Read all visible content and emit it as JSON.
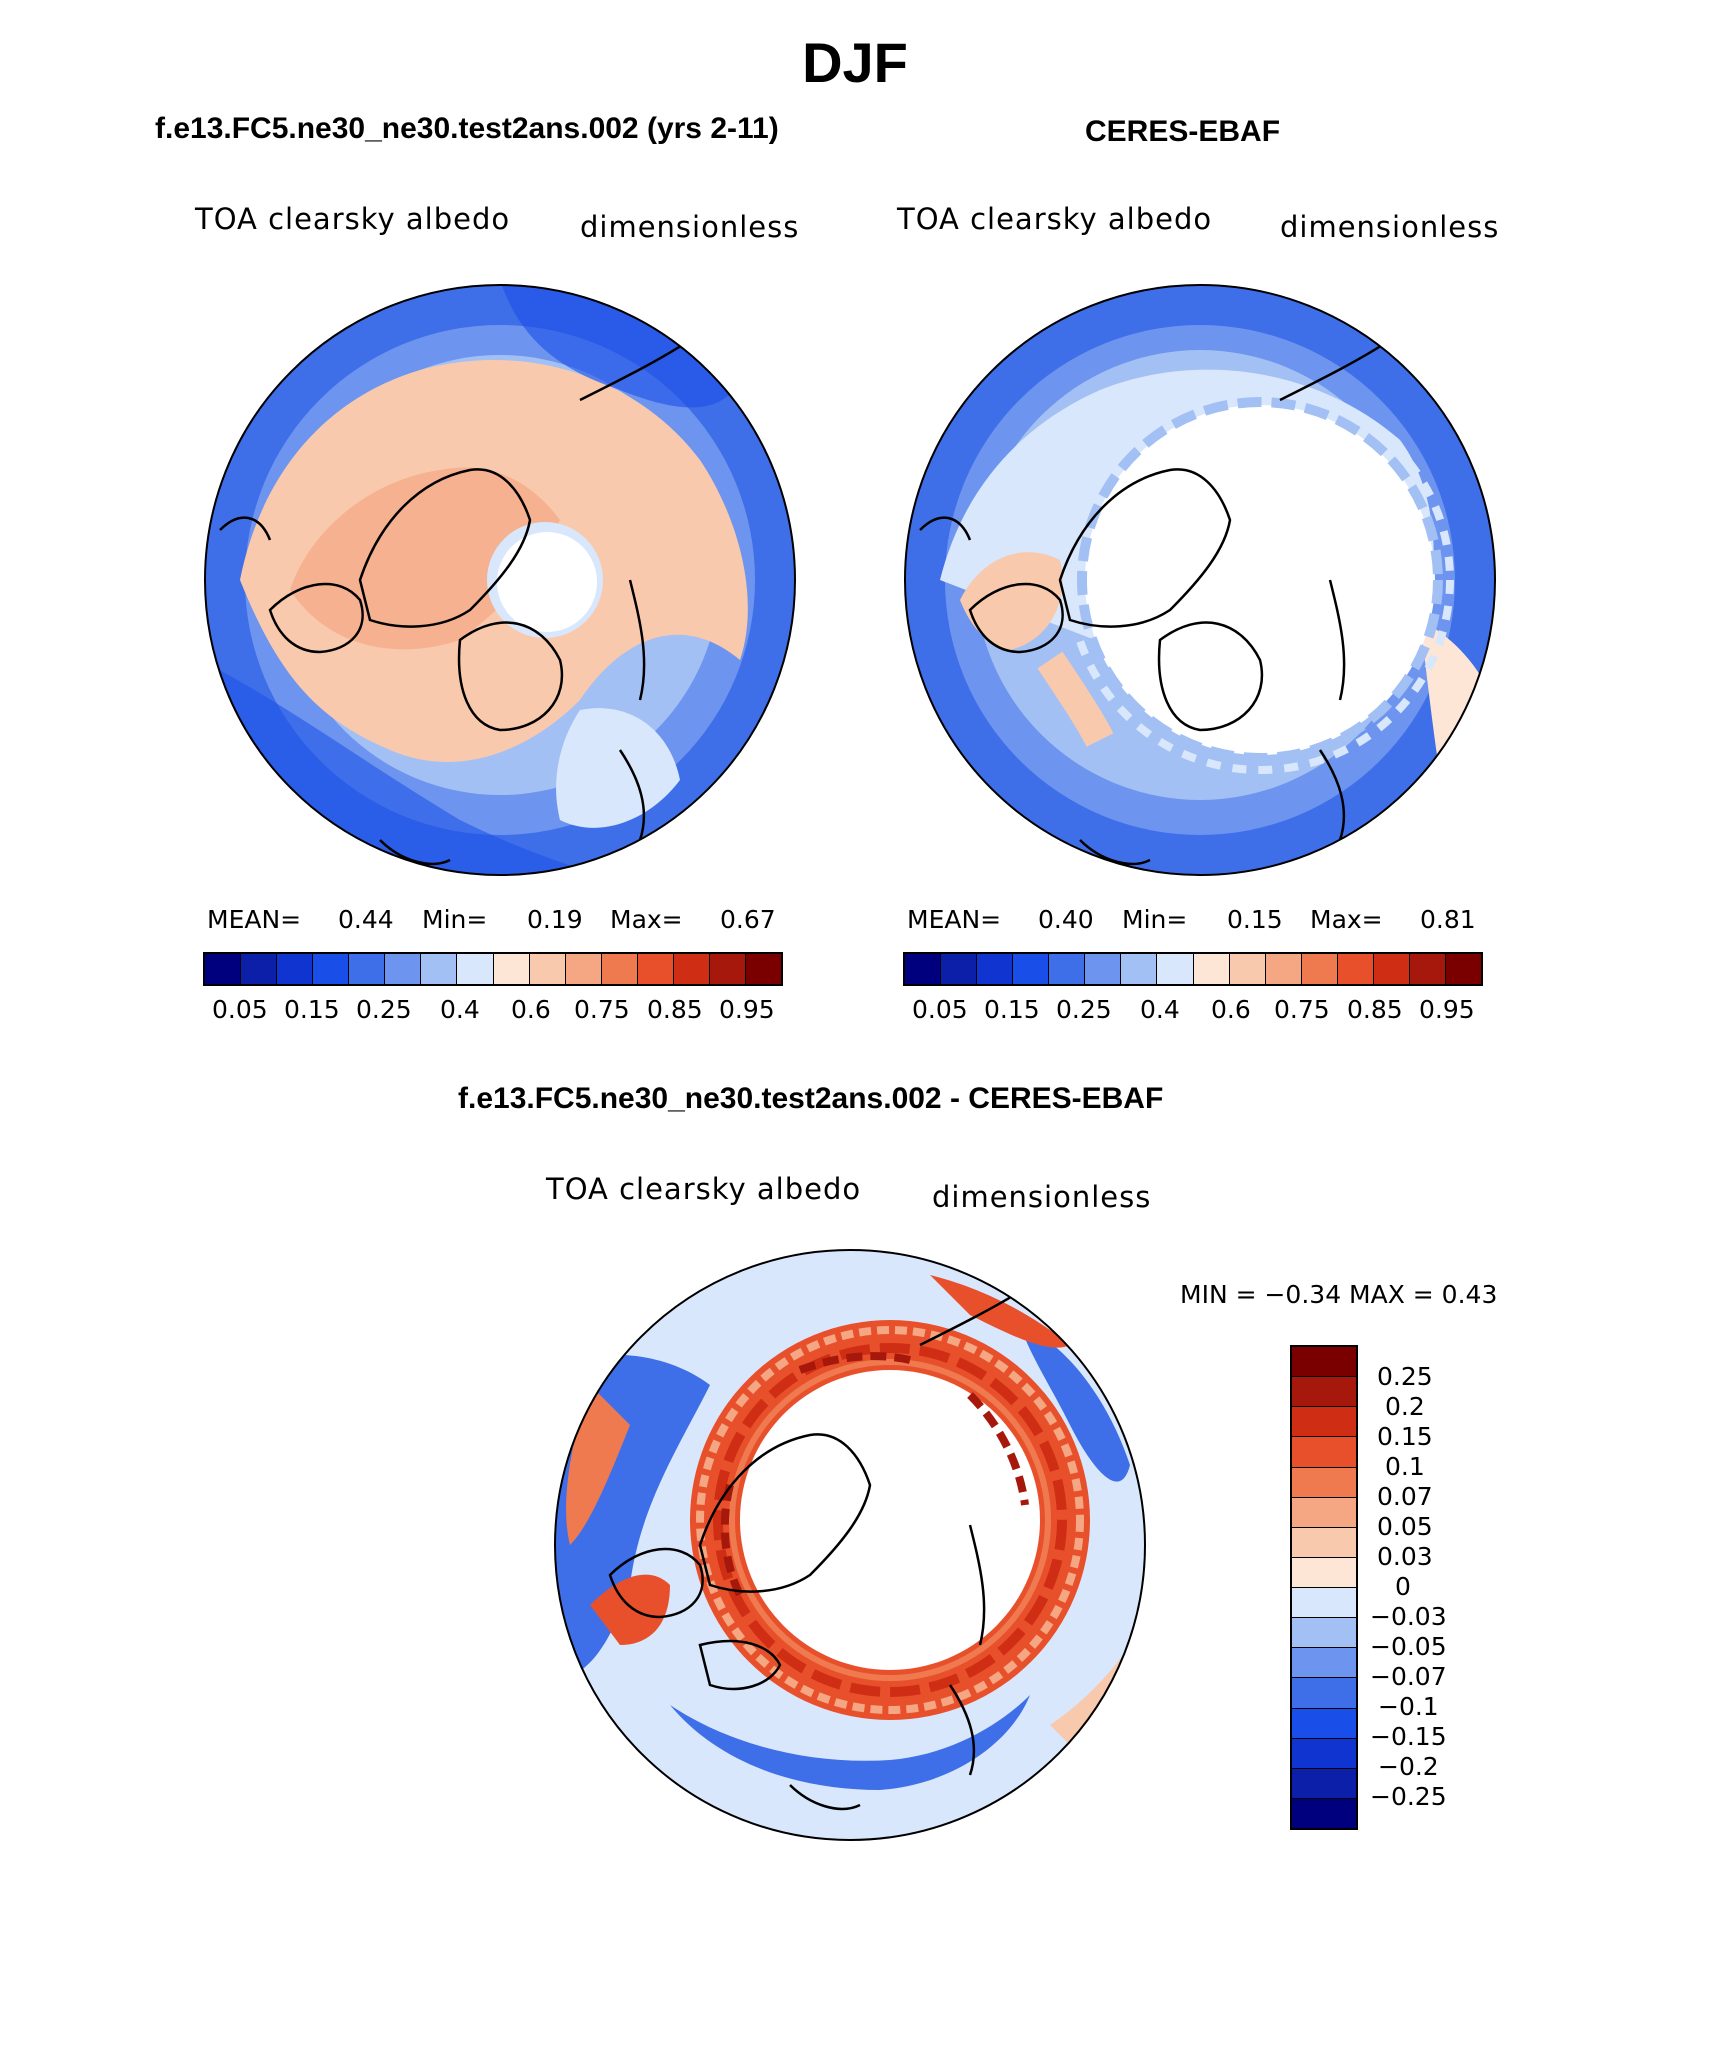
{
  "title": "DJF",
  "colors": {
    "abs_scale": [
      "#00007f",
      "#0b1fa8",
      "#0f34cf",
      "#1a4ee8",
      "#3f6fe8",
      "#6d95ef",
      "#a3c0f4",
      "#d8e7fb",
      "#fde6d6",
      "#f9c9ad",
      "#f5a683",
      "#f07a50",
      "#e8502b",
      "#cf2e14",
      "#a5180b",
      "#7a0000"
    ],
    "diff_scale": [
      "#7a0000",
      "#a5180b",
      "#cf2e14",
      "#e8502b",
      "#f07a50",
      "#f5a683",
      "#f9c9ad",
      "#fde6d6",
      "#d8e7fb",
      "#a3c0f4",
      "#6d95ef",
      "#3f6fe8",
      "#1a4ee8",
      "#0f34cf",
      "#0b1fa8",
      "#00007f"
    ]
  },
  "panels": [
    {
      "title": "f.e13.FC5.ne30_ne30.test2ans.002 (yrs 2-11)",
      "variable": "TOA clearsky albedo",
      "units": "dimensionless",
      "mean_label": "MEAN=",
      "mean_value": "0.44",
      "min_label": "Min=",
      "min_value": "0.19",
      "max_label": "Max=",
      "max_value": "0.67",
      "ticks": [
        "0.05",
        "0.15",
        "0.25",
        "0.4",
        "0.6",
        "0.75",
        "0.85",
        "0.95"
      ]
    },
    {
      "title": "CERES-EBAF",
      "variable": "TOA clearsky albedo",
      "units": "dimensionless",
      "mean_label": "MEAN=",
      "mean_value": "0.40",
      "min_label": "Min=",
      "min_value": "0.15",
      "max_label": "Max=",
      "max_value": "0.81",
      "ticks": [
        "0.05",
        "0.15",
        "0.25",
        "0.4",
        "0.6",
        "0.75",
        "0.85",
        "0.95"
      ]
    }
  ],
  "diff": {
    "title": "f.e13.FC5.ne30_ne30.test2ans.002 - CERES-EBAF",
    "variable": "TOA clearsky albedo",
    "units": "dimensionless",
    "minmax": "MIN =   −0.34  MAX =     0.43",
    "ticks": [
      "0.25",
      "0.2",
      "0.15",
      "0.1",
      "0.07",
      "0.05",
      "0.03",
      "0",
      "−0.03",
      "−0.05",
      "−0.07",
      "−0.1",
      "−0.15",
      "−0.2",
      "−0.25"
    ]
  }
}
